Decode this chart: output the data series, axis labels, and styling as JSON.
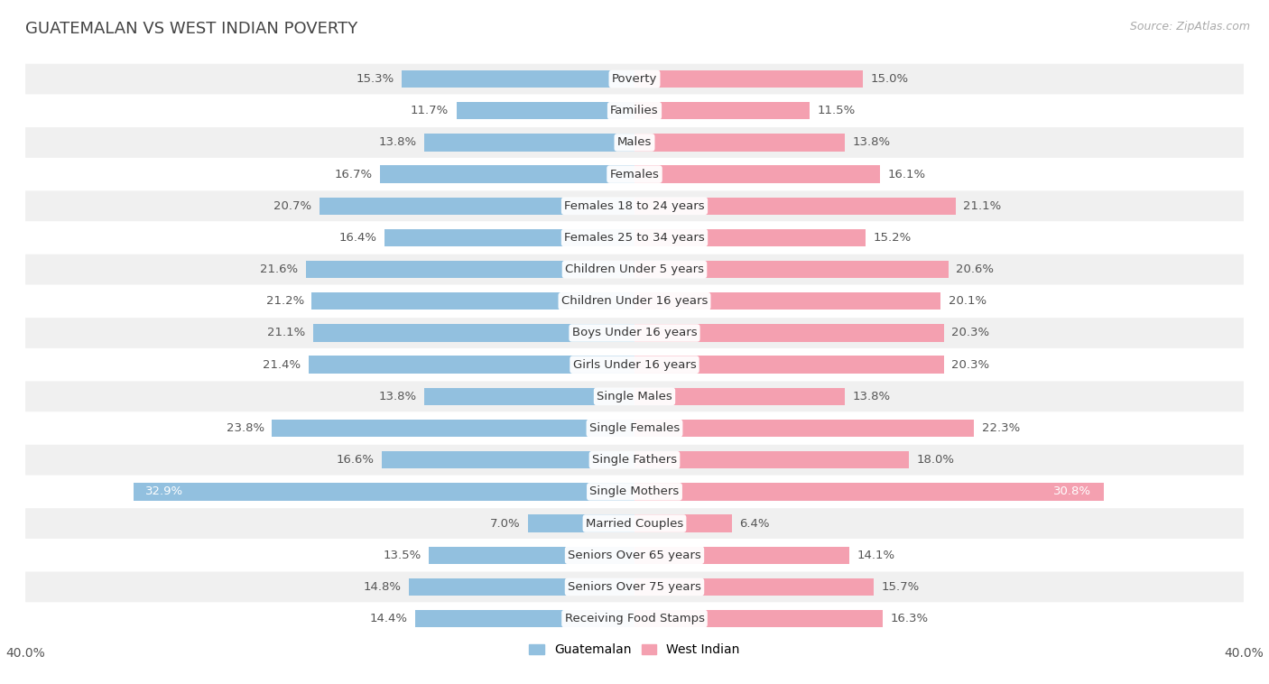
{
  "title": "GUATEMALAN VS WEST INDIAN POVERTY",
  "source": "Source: ZipAtlas.com",
  "categories": [
    "Poverty",
    "Families",
    "Males",
    "Females",
    "Females 18 to 24 years",
    "Females 25 to 34 years",
    "Children Under 5 years",
    "Children Under 16 years",
    "Boys Under 16 years",
    "Girls Under 16 years",
    "Single Males",
    "Single Females",
    "Single Fathers",
    "Single Mothers",
    "Married Couples",
    "Seniors Over 65 years",
    "Seniors Over 75 years",
    "Receiving Food Stamps"
  ],
  "guatemalan": [
    15.3,
    11.7,
    13.8,
    16.7,
    20.7,
    16.4,
    21.6,
    21.2,
    21.1,
    21.4,
    13.8,
    23.8,
    16.6,
    32.9,
    7.0,
    13.5,
    14.8,
    14.4
  ],
  "west_indian": [
    15.0,
    11.5,
    13.8,
    16.1,
    21.1,
    15.2,
    20.6,
    20.1,
    20.3,
    20.3,
    13.8,
    22.3,
    18.0,
    30.8,
    6.4,
    14.1,
    15.7,
    16.3
  ],
  "guatemalan_color": "#92c0df",
  "west_indian_color": "#f4a0b0",
  "background_color": "#ffffff",
  "row_even_color": "#f0f0f0",
  "row_odd_color": "#ffffff",
  "axis_limit": 40.0,
  "bar_height": 0.55,
  "label_fontsize": 9.5,
  "value_fontsize": 9.5,
  "title_fontsize": 13,
  "legend_fontsize": 10,
  "title_color": "#444444",
  "value_color": "#555555",
  "label_color": "#333333",
  "source_color": "#aaaaaa"
}
